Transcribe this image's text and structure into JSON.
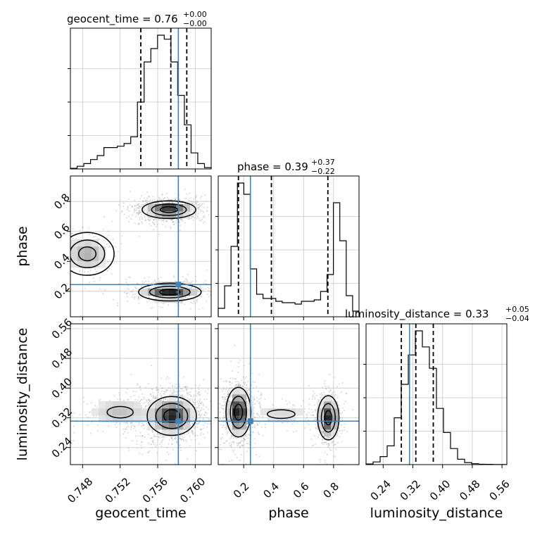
{
  "chart_data": {
    "type": "corner",
    "parameters": [
      "geocent_time",
      "phase",
      "luminosity_distance"
    ],
    "truth_line_color": "#4682b4",
    "grid": true,
    "titles": {
      "geocent_time": {
        "label": "geocent_time",
        "median": "0.76",
        "plus": "+0.00",
        "minus": "−0.00"
      },
      "phase": {
        "label": "phase",
        "median": "0.39",
        "plus": "+0.37",
        "minus": "−0.22"
      },
      "luminosity_distance": {
        "label": "luminosity_distance",
        "median": "0.33",
        "plus": "+0.05",
        "minus": "−0.04"
      }
    },
    "truths": {
      "geocent_time": 0.7582,
      "phase": 0.245,
      "luminosity_distance": 0.311
    },
    "quantiles": {
      "geocent_time": [
        0.7542,
        0.7574,
        0.7591
      ],
      "phase": [
        0.165,
        0.385,
        0.762
      ],
      "luminosity_distance": [
        0.289,
        0.328,
        0.375
      ]
    },
    "ranges": {
      "geocent_time": [
        0.7467,
        0.7617
      ],
      "phase": [
        0.03,
        0.97
      ],
      "luminosity_distance": [
        0.194,
        0.573
      ]
    },
    "ticks": {
      "geocent_time": [
        "0.748",
        "0.752",
        "0.756",
        "0.760"
      ],
      "phase": [
        "0.2",
        "0.4",
        "0.6",
        "0.8"
      ],
      "luminosity_distance": [
        "0.24",
        "0.32",
        "0.40",
        "0.48",
        "0.56"
      ]
    },
    "histograms": {
      "geocent_time": {
        "edges": [
          0.7467,
          0.7617
        ],
        "counts": [
          0.5,
          2,
          4,
          7,
          10,
          16,
          16,
          17,
          19,
          24,
          50,
          80,
          90,
          100,
          97,
          80,
          55,
          33,
          12,
          4,
          1
        ]
      },
      "phase": {
        "edges": [
          0.03,
          0.97
        ],
        "counts": [
          6,
          22,
          50,
          95,
          87,
          34,
          16,
          13,
          13,
          11,
          10,
          10,
          9,
          11,
          11,
          12,
          18,
          30,
          81,
          54,
          15,
          4
        ]
      },
      "luminosity_distance": {
        "edges": [
          0.194,
          0.573
        ],
        "counts": [
          0.5,
          2,
          6,
          14,
          35,
          60,
          82,
          100,
          88,
          72,
          42,
          24,
          12,
          4,
          1.5,
          0.7,
          0.3,
          0.2,
          0.1,
          0.05
        ]
      }
    },
    "modes": {
      "geocent_time|phase": [
        {
          "cx": 0.7572,
          "cy": 0.745,
          "sx": 0.0012,
          "sy": 0.025,
          "w": 1.0
        },
        {
          "cx": 0.7573,
          "cy": 0.195,
          "sx": 0.0014,
          "sy": 0.025,
          "w": 1.0
        },
        {
          "cx": 0.7485,
          "cy": 0.45,
          "sx": 0.0012,
          "sy": 0.06,
          "w": 0.35
        }
      ],
      "geocent_time|luminosity_distance": [
        {
          "cx": 0.7575,
          "cy": 0.325,
          "sx": 0.0011,
          "sy": 0.022,
          "w": 1.0
        },
        {
          "cx": 0.752,
          "cy": 0.335,
          "sx": 0.0018,
          "sy": 0.02,
          "w": 0.25
        }
      ],
      "phase|luminosity_distance": [
        {
          "cx": 0.165,
          "cy": 0.335,
          "sx": 0.035,
          "sy": 0.028,
          "w": 1.0
        },
        {
          "cx": 0.765,
          "cy": 0.32,
          "sx": 0.03,
          "sy": 0.025,
          "w": 0.9
        },
        {
          "cx": 0.45,
          "cy": 0.33,
          "sx": 0.12,
          "sy": 0.015,
          "w": 0.15
        }
      ]
    }
  }
}
